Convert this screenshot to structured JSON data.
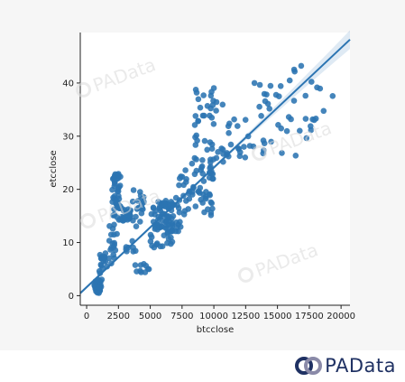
{
  "chart_data": {
    "type": "scatter",
    "xlabel": "btcclose",
    "ylabel": "etcclose",
    "xlim": [
      -500,
      20700
    ],
    "ylim": [
      -1.8,
      49.5
    ],
    "xticks": [
      0,
      2500,
      5000,
      7500,
      10000,
      12500,
      15000,
      17500,
      20000
    ],
    "yticks": [
      0,
      10,
      20,
      30,
      40
    ],
    "regression": {
      "slope": 0.00225,
      "intercept": 1.6
    },
    "point_color": "#2b74b2",
    "line_color": "#2b74b2",
    "clusters": [
      {
        "x": [
          600,
          1150
        ],
        "y": [
          0.5,
          3
        ],
        "n": 45
      },
      {
        "x": [
          1000,
          1600
        ],
        "y": [
          3,
          8
        ],
        "n": 18
      },
      {
        "x": [
          1700,
          2400
        ],
        "y": [
          6,
          14
        ],
        "n": 18
      },
      {
        "x": [
          2000,
          2700
        ],
        "y": [
          14,
          23
        ],
        "n": 45
      },
      {
        "x": [
          2700,
          3600
        ],
        "y": [
          14,
          16.5
        ],
        "n": 22
      },
      {
        "x": [
          3600,
          4500
        ],
        "y": [
          13,
          20
        ],
        "n": 20
      },
      {
        "x": [
          3800,
          4900
        ],
        "y": [
          4.3,
          6
        ],
        "n": 10
      },
      {
        "x": [
          3000,
          4000
        ],
        "y": [
          8,
          12
        ],
        "n": 8
      },
      {
        "x": [
          5000,
          6800
        ],
        "y": [
          9,
          18
        ],
        "n": 55
      },
      {
        "x": [
          5600,
          7500
        ],
        "y": [
          12,
          18
        ],
        "n": 40
      },
      {
        "x": [
          7000,
          10000
        ],
        "y": [
          15,
          26
        ],
        "n": 65
      },
      {
        "x": [
          8500,
          11000
        ],
        "y": [
          25,
          40
        ],
        "n": 40
      },
      {
        "x": [
          11000,
          13000
        ],
        "y": [
          26,
          34
        ],
        "n": 18
      },
      {
        "x": [
          13000,
          18000
        ],
        "y": [
          26,
          44
        ],
        "n": 40
      },
      {
        "x": [
          18000,
          19500
        ],
        "y": [
          33,
          40
        ],
        "n": 5
      }
    ]
  },
  "watermark": {
    "text": "PAData"
  },
  "brand": {
    "name": "PAData"
  }
}
